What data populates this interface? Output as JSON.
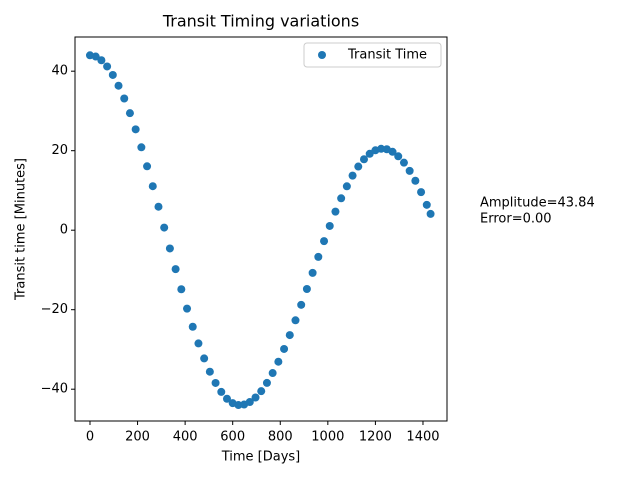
{
  "chart_data": {
    "type": "scatter",
    "title": "Transit Timing variations",
    "x_label": "Time [Days]",
    "y_label": "Transit time [Minutes]",
    "series": [
      {
        "name": "Transit Time",
        "color": "#1f77b4",
        "x": [
          0,
          24,
          48,
          72,
          96,
          120,
          144,
          168,
          192,
          216,
          240,
          264,
          288,
          312,
          336,
          360,
          384,
          408,
          432,
          456,
          480,
          504,
          528,
          552,
          576,
          600,
          624,
          648,
          672,
          696,
          720,
          744,
          768,
          792,
          816,
          840,
          864,
          888,
          912,
          936,
          960,
          984,
          1008,
          1032,
          1056,
          1080,
          1104,
          1128,
          1152,
          1176,
          1200,
          1224,
          1248,
          1272,
          1296,
          1320,
          1344,
          1368,
          1392,
          1416,
          1432
        ],
        "values": [
          44,
          43.69,
          42.75,
          41.19,
          39.05,
          36.35,
          33.13,
          29.44,
          25.37,
          20.85,
          16.07,
          11.07,
          5.91,
          0.66,
          -4.6,
          -9.79,
          -14.86,
          -19.73,
          -24.29,
          -28.48,
          -32.25,
          -35.6,
          -38.43,
          -40.68,
          -42.4,
          -43.51,
          -43.98,
          -43.86,
          -43.22,
          -42.09,
          -40.49,
          -38.42,
          -35.94,
          -33.08,
          -29.88,
          -26.39,
          -22.67,
          -18.78,
          -14.79,
          -10.74,
          -6.71,
          -2.75,
          1.06,
          4.67,
          8.02,
          11.05,
          13.73,
          16.01,
          17.85,
          19.22,
          20.1,
          20.48,
          20.36,
          19.72,
          18.59,
          16.99,
          14.92,
          12.44,
          9.58,
          6.38,
          4.09
        ]
      }
    ],
    "xlim": [
      -63,
      1501
    ],
    "ylim": [
      -48,
      48.6
    ],
    "xticks": [
      0,
      200,
      400,
      600,
      800,
      1000,
      1200,
      1400
    ],
    "yticks": [
      {
        "value": -40,
        "label": "−40"
      },
      {
        "value": -20,
        "label": "−20"
      },
      0,
      20,
      40
    ],
    "legend": "upper right",
    "annotations": [
      "Amplitude=43.84",
      "Error=0.00"
    ]
  }
}
